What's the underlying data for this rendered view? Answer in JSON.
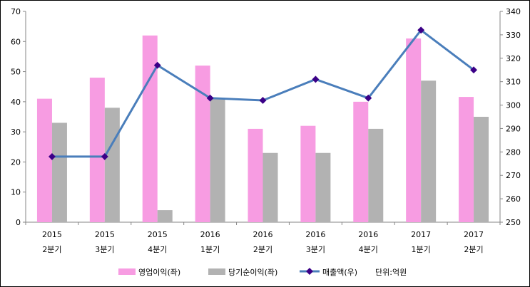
{
  "chart_data": {
    "type": "bar+line",
    "categories": [
      [
        "2015",
        "2분기"
      ],
      [
        "2015",
        "3분기"
      ],
      [
        "2015",
        "4분기"
      ],
      [
        "2016",
        "1분기"
      ],
      [
        "2016",
        "2분기"
      ],
      [
        "2016",
        "3분기"
      ],
      [
        "2016",
        "4분기"
      ],
      [
        "2017",
        "1분기"
      ],
      [
        "2017",
        "2분기"
      ]
    ],
    "series": [
      {
        "name": "영업이익(좌)",
        "type": "bar",
        "axis": "left",
        "color": "#f79ce2",
        "values": [
          41,
          48,
          62,
          52,
          31,
          32,
          40,
          61,
          41.6
        ]
      },
      {
        "name": "당기순이익(좌)",
        "type": "bar",
        "axis": "left",
        "color": "#b2b2b2",
        "values": [
          33,
          38,
          4,
          41,
          23,
          23,
          31,
          47,
          35
        ]
      },
      {
        "name": "매출액(우)",
        "type": "line",
        "axis": "right",
        "color": "#4a7ebb",
        "marker_color": "#3b0087",
        "values": [
          278,
          278,
          317,
          303,
          302,
          311,
          303,
          332,
          315
        ]
      }
    ],
    "left_axis": {
      "ylim": [
        0,
        70
      ],
      "ticks": [
        "0",
        "10",
        "20",
        "30",
        "40",
        "50",
        "60",
        "70"
      ]
    },
    "right_axis": {
      "ylim": [
        250,
        340
      ],
      "ticks": [
        "250",
        "260",
        "270",
        "280",
        "290",
        "300",
        "310",
        "320",
        "330",
        "340"
      ]
    },
    "unit_note": "단위:억원",
    "legend": "bottom",
    "grid": false
  }
}
